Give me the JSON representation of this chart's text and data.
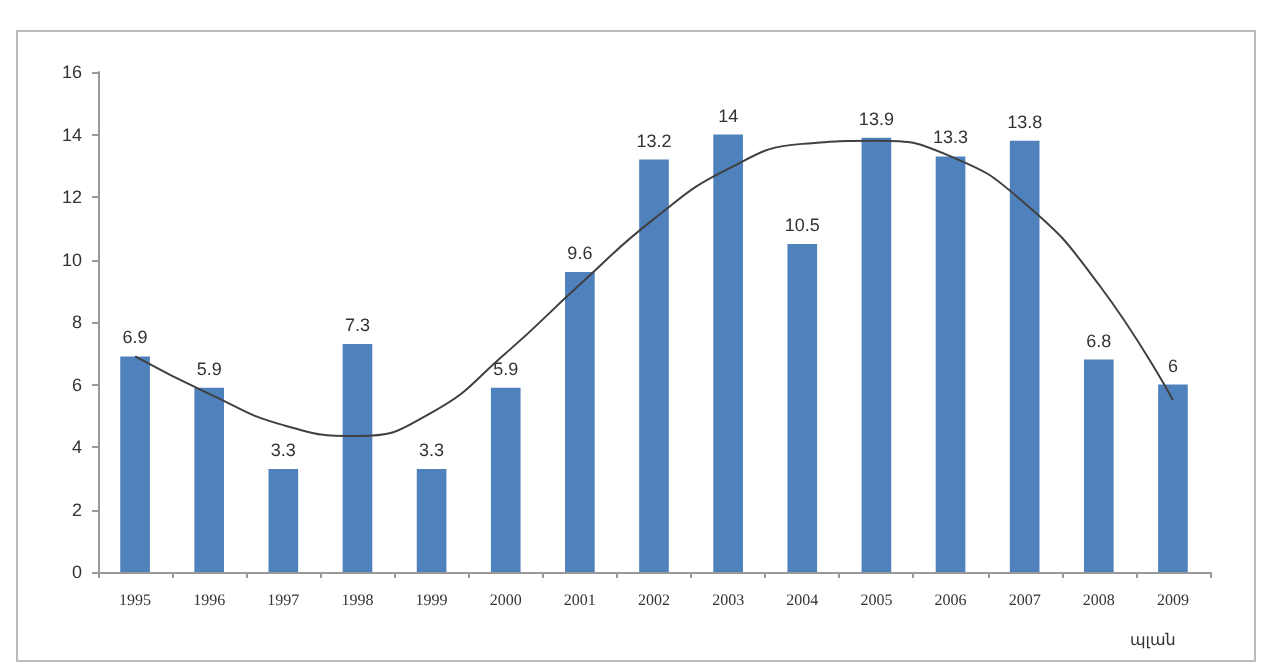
{
  "chart_data": {
    "type": "bar",
    "xlabel": "պլան",
    "categories": [
      "1995",
      "1996",
      "1997",
      "1998",
      "1999",
      "2000",
      "2001",
      "2002",
      "2003",
      "2004",
      "2005",
      "2006",
      "2007",
      "2008",
      "2009"
    ],
    "series": [
      {
        "color": "#4f81bd",
        "values": [
          6.9,
          5.9,
          3.3,
          7.3,
          3.3,
          5.9,
          9.6,
          13.2,
          14,
          10.5,
          13.9,
          13.3,
          13.8,
          6.8,
          6
        ],
        "data_labels": true
      },
      {
        "type": "line",
        "color": "#404040",
        "values": [
          6.9,
          5.7,
          4.7,
          4.35,
          5.1,
          7.0,
          9.2,
          11.3,
          12.9,
          13.7,
          13.8,
          13.3,
          11.8,
          9.2,
          5.5
        ],
        "marker": "none"
      }
    ],
    "ylim": [
      0,
      16
    ],
    "yticks": [
      0,
      2,
      4,
      6,
      8,
      10,
      12,
      14,
      16
    ],
    "grid": false
  }
}
